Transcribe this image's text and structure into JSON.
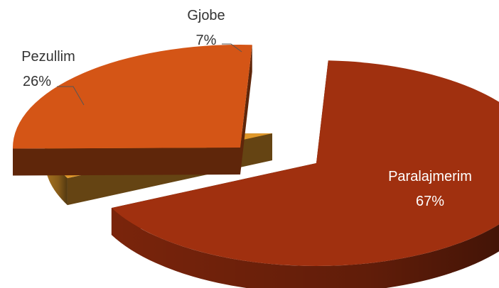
{
  "chart_data": {
    "type": "pie",
    "three_d": true,
    "exploded": true,
    "slices": [
      {
        "label": "Paralajmerim",
        "value": 67,
        "value_label": "67%",
        "color": "#a0300f",
        "label_inside": true
      },
      {
        "label": "Gjobe",
        "value": 7,
        "value_label": "7%",
        "color": "#e0982a",
        "label_inside": false
      },
      {
        "label": "Pezullim",
        "value": 26,
        "value_label": "26%",
        "color": "#d45516",
        "label_inside": false
      }
    ],
    "legend": "none"
  }
}
